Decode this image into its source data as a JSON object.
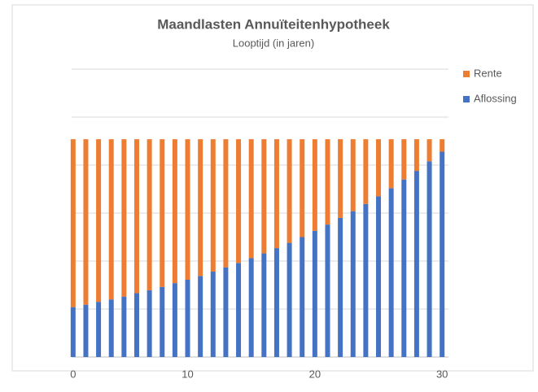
{
  "chart_data": {
    "type": "bar",
    "stacked": true,
    "title": "Maandlasten Annuïteitenhypotheek",
    "subtitle": "Looptijd (in jaren)",
    "categories": [
      "0",
      null,
      null,
      null,
      null,
      null,
      null,
      null,
      null,
      "10",
      null,
      null,
      null,
      null,
      null,
      null,
      null,
      null,
      null,
      "20",
      null,
      null,
      null,
      null,
      null,
      null,
      null,
      null,
      null,
      "30"
    ],
    "series": [
      {
        "name": "Aflossing",
        "color": "#4472c4",
        "values": [
          1.04,
          1.09,
          1.15,
          1.2,
          1.26,
          1.33,
          1.39,
          1.46,
          1.54,
          1.61,
          1.69,
          1.78,
          1.87,
          1.96,
          2.06,
          2.16,
          2.27,
          2.38,
          2.5,
          2.63,
          2.76,
          2.9,
          3.04,
          3.19,
          3.35,
          3.52,
          3.7,
          3.88,
          4.08,
          4.28
        ]
      },
      {
        "name": "Rente",
        "color": "#ed7d31",
        "values": [
          3.5,
          3.45,
          3.39,
          3.34,
          3.28,
          3.21,
          3.15,
          3.08,
          3.0,
          2.93,
          2.85,
          2.76,
          2.67,
          2.58,
          2.48,
          2.38,
          2.27,
          2.16,
          2.04,
          1.91,
          1.78,
          1.64,
          1.5,
          1.35,
          1.19,
          1.02,
          0.84,
          0.66,
          0.46,
          0.26
        ]
      }
    ],
    "ylim": [
      0,
      6
    ],
    "yticks": [
      0,
      1,
      2,
      3,
      4,
      5,
      6
    ],
    "grid": true,
    "legend": "right"
  }
}
